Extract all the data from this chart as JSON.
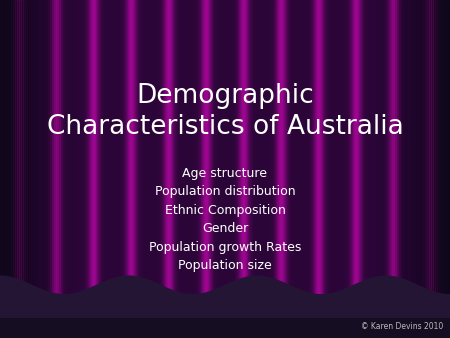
{
  "title_line1": "Demographic",
  "title_line2": "Characteristics of Australia",
  "bullet_lines": [
    "Age structure",
    "Population distribution",
    "Ethnic Composition",
    "Gender",
    "Population growth Rates",
    "Population size"
  ],
  "copyright_text": "© Karen Devins 2010",
  "title_color": "#ffffff",
  "bullet_color": "#ffffff",
  "copyright_color": "#bbbbbb",
  "title_fontsize": 19,
  "bullet_fontsize": 9,
  "copyright_fontsize": 5.5,
  "bg_color": "#3d2850",
  "fig_width": 4.5,
  "fig_height": 3.38,
  "dpi": 100,
  "num_stripes": 12,
  "stripe_bright_color": "#9b1a9b",
  "stripe_dark_color": "#2a1838",
  "wave_color": "#2a1838",
  "wave_bottom_color": "#1a0f28"
}
